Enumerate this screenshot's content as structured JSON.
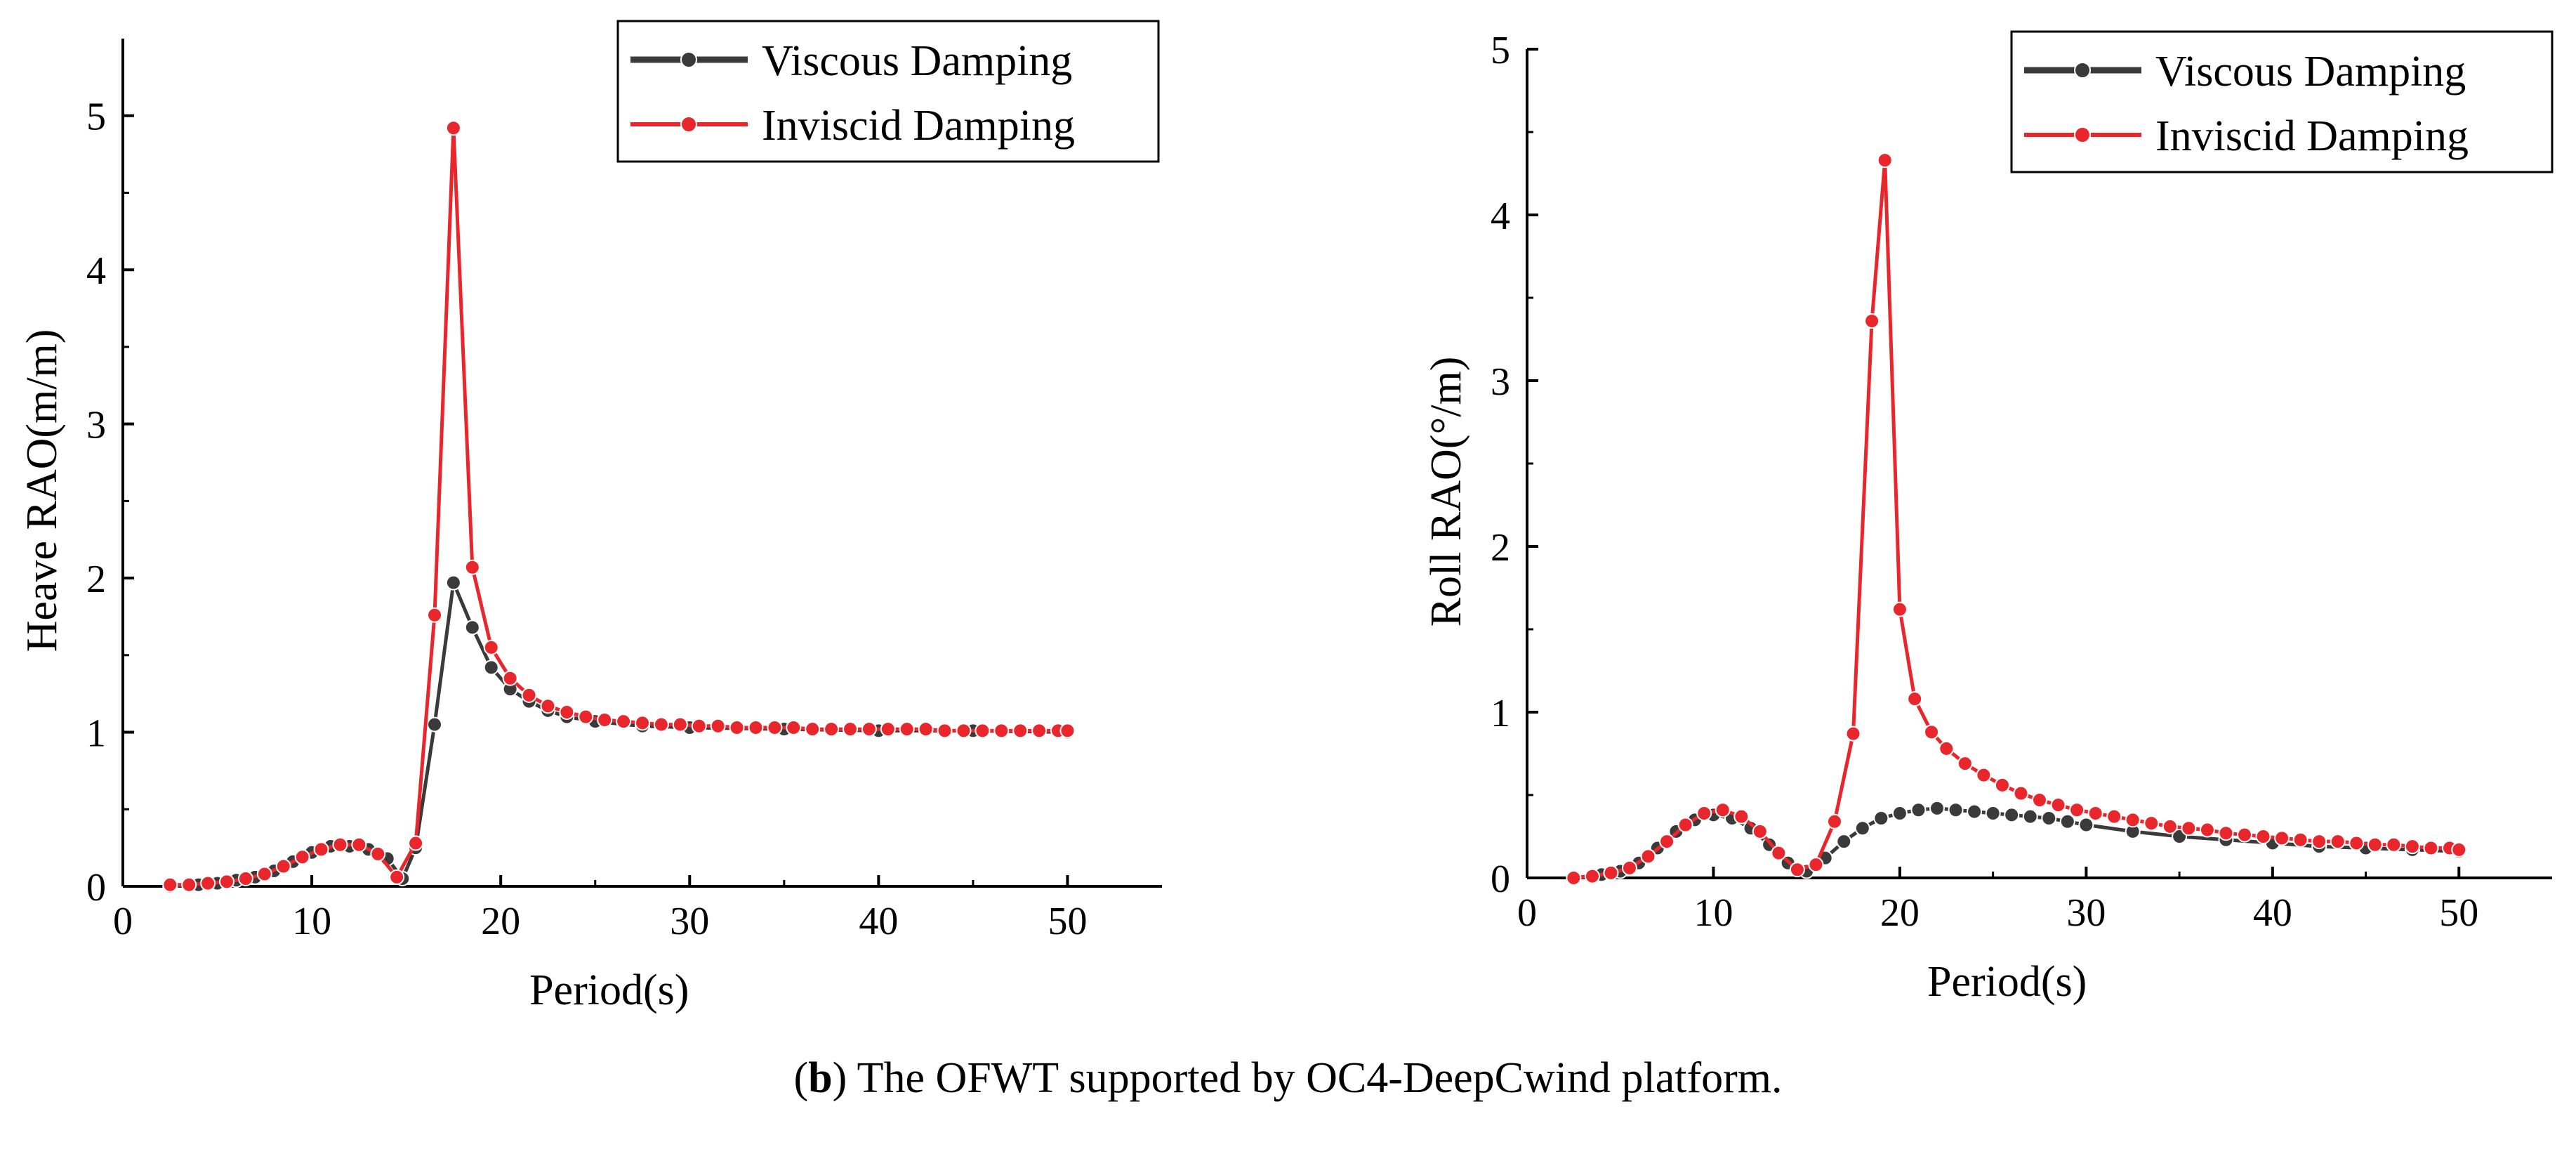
{
  "caption": {
    "tag": "b",
    "text": "The OFWT supported by OC4-DeepCwind platform."
  },
  "colors": {
    "viscous": "#3a3a3a",
    "inviscid": "#e8262b",
    "axis": "#000000"
  },
  "chart_data": [
    {
      "type": "line",
      "id": "heave",
      "title": "",
      "xlabel": "Period(s)",
      "ylabel": "Heave RAO(m/m)",
      "xlim": [
        0,
        55
      ],
      "ylim": [
        0,
        5.5
      ],
      "xticks": [
        0,
        10,
        20,
        30,
        40,
        50
      ],
      "yticks": [
        0,
        1,
        2,
        3,
        4,
        5
      ],
      "legend": {
        "position": "top-right",
        "entries": [
          "Viscous Damping",
          "Inviscid Damping"
        ]
      },
      "series": [
        {
          "name": "Viscous Damping",
          "x": [
            2.5,
            4.0,
            5.0,
            6.0,
            7.0,
            8.0,
            9.0,
            10.0,
            11.0,
            12.0,
            13.0,
            14.0,
            14.8,
            15.5,
            16.5,
            17.5,
            18.5,
            19.5,
            20.5,
            21.5,
            22.5,
            23.5,
            25,
            27.5,
            30,
            35,
            40,
            45,
            50
          ],
          "y": [
            0.0,
            0.01,
            0.02,
            0.04,
            0.06,
            0.1,
            0.16,
            0.22,
            0.26,
            0.26,
            0.24,
            0.18,
            0.05,
            0.25,
            1.05,
            1.97,
            1.68,
            1.42,
            1.28,
            1.2,
            1.14,
            1.1,
            1.07,
            1.04,
            1.03,
            1.02,
            1.01,
            1.01,
            1.0
          ]
        },
        {
          "name": "Inviscid Damping",
          "x": [
            2.5,
            3.5,
            4.5,
            5.5,
            6.5,
            7.5,
            8.5,
            9.5,
            10.5,
            11.5,
            12.5,
            13.5,
            14.5,
            15.5,
            16.5,
            17.5,
            18.5,
            19.5,
            20.5,
            21.5,
            22.5,
            23.5,
            24.5,
            25.5,
            26.5,
            27.5,
            28.5,
            29.5,
            30.5,
            31.5,
            32.5,
            33.5,
            34.5,
            35.5,
            36.5,
            37.5,
            38.5,
            39.5,
            40.5,
            41.5,
            42.5,
            43.5,
            44.5,
            45.5,
            46.5,
            47.5,
            48.5,
            49.5,
            50.0
          ],
          "y": [
            0.01,
            0.01,
            0.02,
            0.03,
            0.05,
            0.08,
            0.13,
            0.19,
            0.24,
            0.27,
            0.27,
            0.21,
            0.06,
            0.28,
            1.76,
            4.92,
            2.07,
            1.55,
            1.35,
            1.24,
            1.17,
            1.13,
            1.1,
            1.08,
            1.07,
            1.06,
            1.05,
            1.05,
            1.04,
            1.04,
            1.03,
            1.03,
            1.03,
            1.03,
            1.02,
            1.02,
            1.02,
            1.02,
            1.02,
            1.02,
            1.02,
            1.01,
            1.01,
            1.01,
            1.01,
            1.01,
            1.01,
            1.01,
            1.01
          ]
        }
      ]
    },
    {
      "type": "line",
      "id": "roll",
      "title": "",
      "xlabel": "Period(s)",
      "ylabel": "Roll RAO(°/m)",
      "xlim": [
        0,
        55
      ],
      "ylim": [
        0,
        5
      ],
      "xticks": [
        0,
        10,
        20,
        30,
        40,
        50
      ],
      "yticks": [
        0,
        1,
        2,
        3,
        4,
        5
      ],
      "legend": {
        "position": "top-right",
        "entries": [
          "Viscous Damping",
          "Inviscid Damping"
        ]
      },
      "series": [
        {
          "name": "Viscous Damping",
          "x": [
            2.5,
            4.0,
            5.0,
            6.0,
            7.0,
            8.0,
            9.0,
            10.0,
            11.0,
            12.0,
            13.0,
            14.0,
            15.0,
            16.0,
            17.0,
            18.0,
            19.0,
            20.0,
            21.0,
            22.0,
            23.0,
            24.0,
            25.0,
            26.0,
            27.0,
            28.0,
            29.0,
            30.0,
            32.5,
            35.0,
            37.5,
            40.0,
            42.5,
            45.0,
            47.5,
            50.0
          ],
          "y": [
            0.0,
            0.02,
            0.04,
            0.09,
            0.18,
            0.28,
            0.35,
            0.38,
            0.36,
            0.3,
            0.2,
            0.09,
            0.04,
            0.12,
            0.22,
            0.3,
            0.36,
            0.39,
            0.41,
            0.42,
            0.41,
            0.4,
            0.39,
            0.38,
            0.37,
            0.36,
            0.34,
            0.32,
            0.28,
            0.25,
            0.23,
            0.21,
            0.19,
            0.18,
            0.17,
            0.16
          ]
        },
        {
          "name": "Inviscid Damping",
          "x": [
            2.5,
            3.5,
            4.5,
            5.5,
            6.5,
            7.5,
            8.5,
            9.5,
            10.5,
            11.5,
            12.5,
            13.5,
            14.5,
            15.5,
            16.5,
            17.5,
            18.5,
            19.2,
            20.0,
            20.8,
            21.7,
            22.5,
            23.5,
            24.5,
            25.5,
            26.5,
            27.5,
            28.5,
            29.5,
            30.5,
            31.5,
            32.5,
            33.5,
            34.5,
            35.5,
            36.5,
            37.5,
            38.5,
            39.5,
            40.5,
            41.5,
            42.5,
            43.5,
            44.5,
            45.5,
            46.5,
            47.5,
            48.5,
            49.5,
            50.0
          ],
          "y": [
            0.0,
            0.01,
            0.03,
            0.06,
            0.13,
            0.22,
            0.32,
            0.39,
            0.41,
            0.37,
            0.28,
            0.15,
            0.05,
            0.08,
            0.34,
            0.87,
            3.36,
            4.33,
            1.62,
            1.08,
            0.88,
            0.78,
            0.69,
            0.62,
            0.56,
            0.51,
            0.47,
            0.44,
            0.41,
            0.39,
            0.37,
            0.35,
            0.33,
            0.31,
            0.3,
            0.29,
            0.27,
            0.26,
            0.25,
            0.24,
            0.23,
            0.22,
            0.22,
            0.21,
            0.2,
            0.2,
            0.19,
            0.18,
            0.18,
            0.17
          ]
        }
      ]
    }
  ]
}
